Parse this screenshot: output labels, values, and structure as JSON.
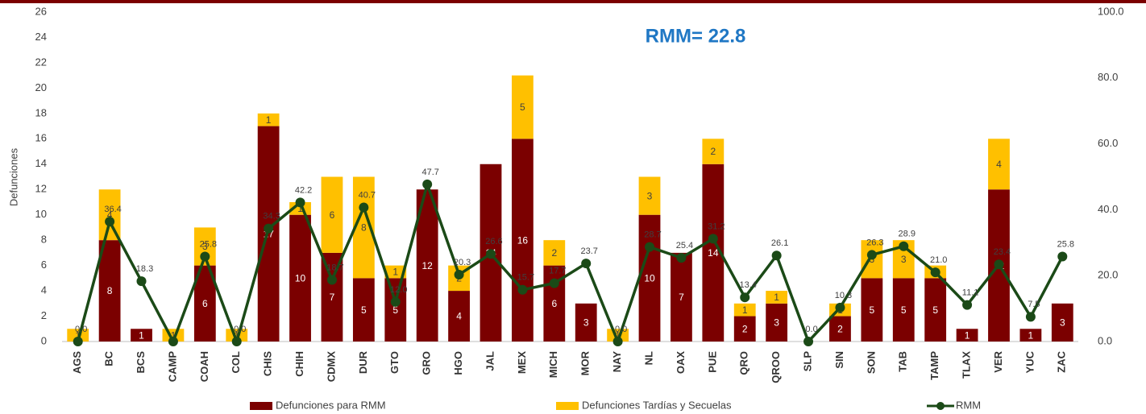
{
  "chart_data": {
    "type": "bar-line",
    "annotation": "RMM=  22.8",
    "ylabel": "Defunciones",
    "categories": [
      "AGS",
      "BC",
      "BCS",
      "CAMP",
      "COAH",
      "COL",
      "CHIS",
      "CHIH",
      "CDMX",
      "DUR",
      "GTO",
      "GRO",
      "HGO",
      "JAL",
      "MEX",
      "MICH",
      "MOR",
      "NAY",
      "NL",
      "OAX",
      "PUE",
      "QRO",
      "QROO",
      "SLP",
      "SIN",
      "SON",
      "TAB",
      "TAMP",
      "TLAX",
      "VER",
      "YUC",
      "ZAC"
    ],
    "series": [
      {
        "name": "Defunciones para RMM",
        "type": "bar",
        "color": "#7b0000",
        "values": [
          0,
          8,
          1,
          0,
          6,
          0,
          17,
          10,
          7,
          5,
          5,
          12,
          4,
          14,
          16,
          6,
          3,
          0,
          10,
          7,
          14,
          2,
          3,
          0,
          2,
          5,
          5,
          5,
          1,
          12,
          1,
          3
        ]
      },
      {
        "name": "Defunciones Tardías y Secuelas",
        "type": "bar",
        "color": "#ffc000",
        "values": [
          1,
          4,
          0,
          1,
          3,
          1,
          1,
          1,
          6,
          8,
          1,
          0,
          2,
          0,
          5,
          2,
          0,
          1,
          3,
          0,
          2,
          1,
          1,
          0,
          1,
          3,
          3,
          1,
          0,
          4,
          0,
          0
        ]
      },
      {
        "name": "RMM",
        "type": "line",
        "axis": "y2",
        "color": "#1b4a17",
        "values": [
          0,
          36.4,
          18.3,
          0,
          25.8,
          0,
          34.3,
          42.2,
          18.7,
          40.7,
          12,
          47.7,
          20.3,
          26.6,
          15.7,
          17.7,
          23.7,
          0,
          28.7,
          25.4,
          31.2,
          13.4,
          26.1,
          0,
          10.3,
          26.3,
          28.9,
          21,
          11.1,
          23.4,
          7.5,
          25.8
        ],
        "value_labels": [
          "0.0",
          "36.4",
          "18.3",
          null,
          "25.8",
          "0.0",
          "34.3",
          "42.2",
          "18.7",
          "40.7",
          "12.0",
          "47.7",
          "20.3",
          "26.6",
          "15.7",
          "17.7",
          "23.7",
          "0.0",
          "28.7",
          "25.4",
          "31.2",
          "13.4",
          "26.1",
          "0.0",
          "10.3",
          "26.3",
          "28.9",
          "21.0",
          "11.1",
          "23.4",
          "7.5",
          "25.8"
        ]
      }
    ],
    "ylim": [
      0,
      26
    ],
    "yticks": [
      0,
      2,
      4,
      6,
      8,
      10,
      12,
      14,
      16,
      18,
      20,
      22,
      24,
      26
    ],
    "y2lim": [
      0,
      100
    ],
    "y2ticks": [
      {
        "value": 0,
        "label": "0.0"
      },
      {
        "value": 20,
        "label": "20.0"
      },
      {
        "value": 40,
        "label": "40.0"
      },
      {
        "value": 60,
        "label": "60.0"
      },
      {
        "value": 80,
        "label": "80.0"
      },
      {
        "value": 100,
        "label": "100.0"
      }
    ],
    "legend": "bottom"
  }
}
